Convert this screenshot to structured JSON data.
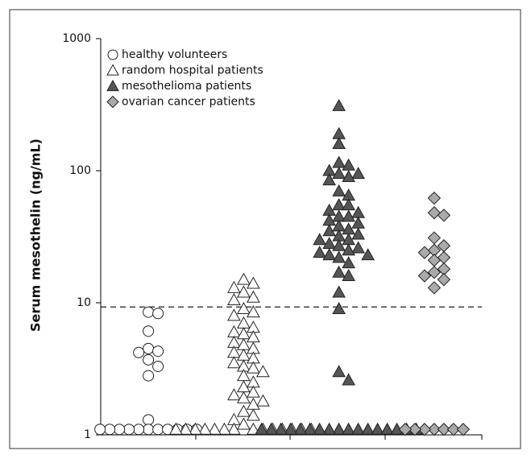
{
  "chart_data": {
    "type": "strip",
    "y_label": "Serum mesothelin (ng/mL)",
    "log_y": true,
    "ylim": [
      1,
      1000
    ],
    "yticks": [
      1,
      10,
      100,
      1000
    ],
    "reference_line": 9.3,
    "legend": "upper left",
    "series": [
      {
        "name": "healthy volunteers",
        "marker": "circle",
        "color": "#ffffff",
        "values": [
          8.5,
          8.3,
          6.1,
          4.5,
          4.3,
          4.2,
          3.7,
          3.3,
          2.8,
          1.3,
          1.1,
          1.1,
          1.1,
          1.1,
          1.1,
          1.1,
          1.1,
          1.1,
          1.1,
          1.1,
          1.1
        ]
      },
      {
        "name": "random hospital patients",
        "marker": "triangle",
        "color": "#ffffff",
        "values": [
          15,
          14,
          13,
          12,
          11,
          10.5,
          9,
          8.5,
          8,
          7,
          6.5,
          6,
          5.8,
          5.5,
          5,
          4.8,
          4.5,
          4.2,
          4,
          3.8,
          3.5,
          3.3,
          3.2,
          3,
          2.8,
          2.5,
          2.3,
          2.1,
          2,
          1.9,
          1.8,
          1.7,
          1.5,
          1.4,
          1.3,
          1.2,
          1.1,
          1.1,
          1.1,
          1.1,
          1.1,
          1.1,
          1.1,
          1.1,
          1.1,
          1.1,
          1.1,
          1.1,
          1.1,
          1.1
        ]
      },
      {
        "name": "mesothelioma patients",
        "marker": "triangle",
        "color": "#555555",
        "values": [
          310,
          190,
          160,
          115,
          110,
          100,
          95,
          95,
          90,
          85,
          70,
          65,
          55,
          55,
          50,
          48,
          45,
          45,
          42,
          40,
          38,
          36,
          35,
          33,
          32,
          30,
          30,
          28,
          27,
          26,
          25,
          24,
          23,
          23,
          22,
          20,
          17,
          16,
          12,
          9,
          3.0,
          2.6,
          1.1,
          1.1,
          1.1,
          1.1,
          1.1,
          1.1,
          1.1,
          1.1,
          1.1,
          1.1,
          1.1,
          1.1,
          1.1,
          1.1,
          1.1,
          1.1,
          1.1
        ]
      },
      {
        "name": "ovarian cancer patients",
        "marker": "diamond",
        "color": "#aaaaaa",
        "values": [
          62,
          48,
          46,
          31,
          27,
          25,
          24,
          22,
          21,
          18,
          17,
          16,
          15,
          13,
          1.1,
          1.1,
          1.1,
          1.1,
          1.1,
          1.1,
          1.1
        ]
      }
    ]
  }
}
